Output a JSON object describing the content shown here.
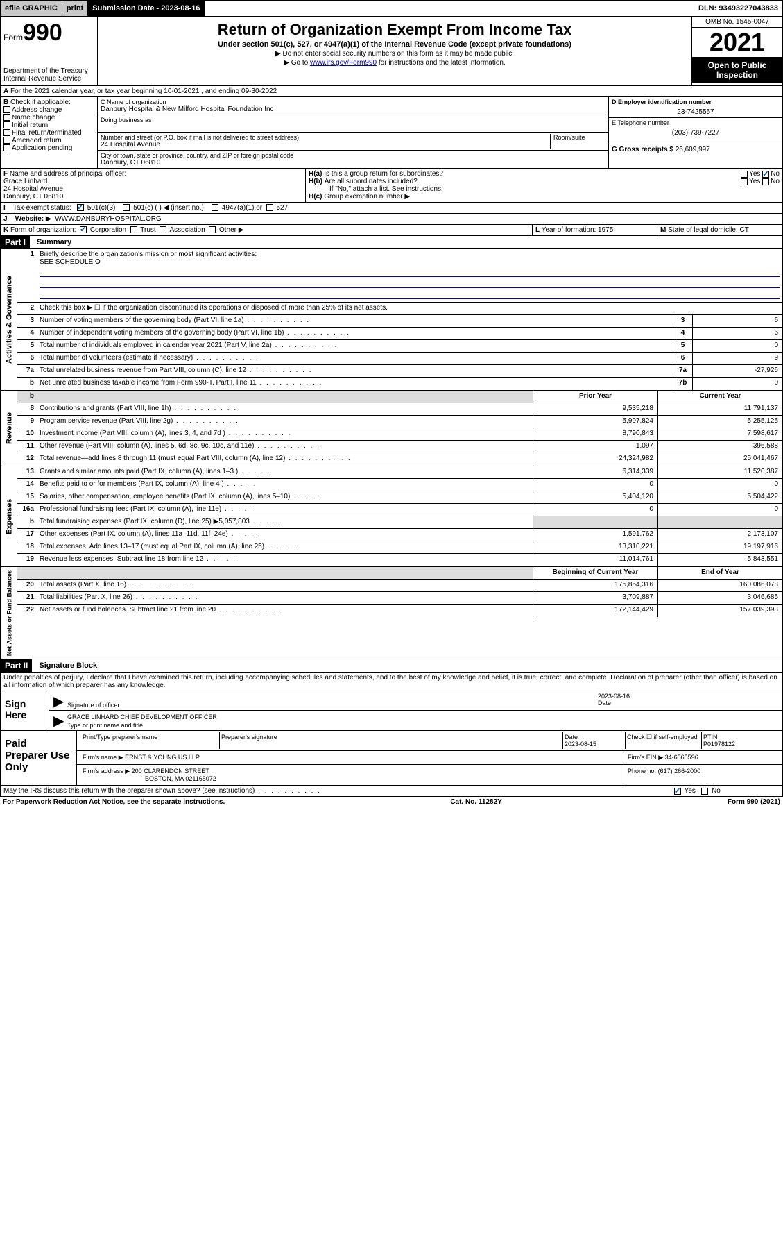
{
  "topbar": {
    "efile": "efile GRAPHIC",
    "print": "print",
    "submission_label": "Submission Date - 2023-08-16",
    "dln": "DLN: 93493227043833"
  },
  "header": {
    "form_prefix": "Form",
    "form_number": "990",
    "dept": "Department of the Treasury",
    "irs": "Internal Revenue Service",
    "title": "Return of Organization Exempt From Income Tax",
    "subtitle": "Under section 501(c), 527, or 4947(a)(1) of the Internal Revenue Code (except private foundations)",
    "note1": "▶ Do not enter social security numbers on this form as it may be made public.",
    "note2_prefix": "▶ Go to ",
    "note2_link": "www.irs.gov/Form990",
    "note2_suffix": " for instructions and the latest information.",
    "omb": "OMB No. 1545-0047",
    "year": "2021",
    "open": "Open to Public Inspection"
  },
  "section_a": {
    "text": "For the 2021 calendar year, or tax year beginning 10-01-2021   , and ending 09-30-2022"
  },
  "box_b": {
    "label": "B",
    "check_label": "Check if applicable:",
    "items": [
      "Address change",
      "Name change",
      "Initial return",
      "Final return/terminated",
      "Amended return",
      "Application pending"
    ]
  },
  "box_c": {
    "name_label": "C Name of organization",
    "name": "Danbury Hospital & New Milford Hospital Foundation Inc",
    "dba_label": "Doing business as",
    "addr_label": "Number and street (or P.O. box if mail is not delivered to street address)",
    "room_label": "Room/suite",
    "addr": "24 Hospital Avenue",
    "city_label": "City or town, state or province, country, and ZIP or foreign postal code",
    "city": "Danbury, CT  06810"
  },
  "box_d": {
    "label": "D Employer identification number",
    "ein": "23-7425557",
    "e_label": "E Telephone number",
    "phone": "(203) 739-7227",
    "g_label": "G Gross receipts $",
    "gross": "26,609,997"
  },
  "box_f": {
    "label": "F",
    "text": "Name and address of principal officer:",
    "name": "Grace Linhard",
    "addr": "24 Hospital Avenue",
    "city": "Danbury, CT  06810"
  },
  "box_h": {
    "ha": "H(a)",
    "ha_text": "Is this a group return for subordinates?",
    "hb": "H(b)",
    "hb_text": "Are all subordinates included?",
    "hb_note": "If \"No,\" attach a list. See instructions.",
    "hc": "H(c)",
    "hc_text": "Group exemption number ▶",
    "yes": "Yes",
    "no": "No"
  },
  "tax_status": {
    "i_label": "I",
    "label": "Tax-exempt status:",
    "opt1": "501(c)(3)",
    "opt2": "501(c) (  ) ◀ (insert no.)",
    "opt3": "4947(a)(1) or",
    "opt4": "527"
  },
  "website": {
    "j_label": "J",
    "label": "Website: ▶",
    "url": "WWW.DANBURYHOSPITAL.ORG"
  },
  "box_k": {
    "label": "K",
    "text": "Form of organization:",
    "opts": [
      "Corporation",
      "Trust",
      "Association",
      "Other ▶"
    ]
  },
  "box_l": {
    "label": "L",
    "text": "Year of formation: 1975"
  },
  "box_m": {
    "label": "M",
    "text": "State of legal domicile: CT"
  },
  "part1": {
    "header": "Part I",
    "title": "Summary",
    "q1_num": "1",
    "q1": "Briefly describe the organization's mission or most significant activities:",
    "q1_ans": "SEE SCHEDULE O",
    "q2_num": "2",
    "q2": "Check this box ▶ ☐  if the organization discontinued its operations or disposed of more than 25% of its net assets."
  },
  "governance_label": "Activities & Governance",
  "revenue_label": "Revenue",
  "expenses_label": "Expenses",
  "netassets_label": "Net Assets or Fund Balances",
  "lines_gov": [
    {
      "n": "3",
      "d": "Number of voting members of the governing body (Part VI, line 1a)",
      "box": "3",
      "v": "6"
    },
    {
      "n": "4",
      "d": "Number of independent voting members of the governing body (Part VI, line 1b)",
      "box": "4",
      "v": "6"
    },
    {
      "n": "5",
      "d": "Total number of individuals employed in calendar year 2021 (Part V, line 2a)",
      "box": "5",
      "v": "0"
    },
    {
      "n": "6",
      "d": "Total number of volunteers (estimate if necessary)",
      "box": "6",
      "v": "9"
    },
    {
      "n": "7a",
      "d": "Total unrelated business revenue from Part VIII, column (C), line 12",
      "box": "7a",
      "v": "-27,926"
    },
    {
      "n": "b",
      "d": "Net unrelated business taxable income from Form 990-T, Part I, line 11",
      "box": "7b",
      "v": "0"
    }
  ],
  "col_headers": {
    "prior": "Prior Year",
    "current": "Current Year",
    "boy": "Beginning of Current Year",
    "eoy": "End of Year"
  },
  "lines_rev": [
    {
      "n": "8",
      "d": "Contributions and grants (Part VIII, line 1h)",
      "p": "9,535,218",
      "c": "11,791,137"
    },
    {
      "n": "9",
      "d": "Program service revenue (Part VIII, line 2g)",
      "p": "5,997,824",
      "c": "5,255,125"
    },
    {
      "n": "10",
      "d": "Investment income (Part VIII, column (A), lines 3, 4, and 7d )",
      "p": "8,790,843",
      "c": "7,598,617"
    },
    {
      "n": "11",
      "d": "Other revenue (Part VIII, column (A), lines 5, 6d, 8c, 9c, 10c, and 11e)",
      "p": "1,097",
      "c": "396,588"
    },
    {
      "n": "12",
      "d": "Total revenue—add lines 8 through 11 (must equal Part VIII, column (A), line 12)",
      "p": "24,324,982",
      "c": "25,041,467"
    }
  ],
  "lines_exp": [
    {
      "n": "13",
      "d": "Grants and similar amounts paid (Part IX, column (A), lines 1–3 )",
      "p": "6,314,339",
      "c": "11,520,387"
    },
    {
      "n": "14",
      "d": "Benefits paid to or for members (Part IX, column (A), line 4 )",
      "p": "0",
      "c": "0"
    },
    {
      "n": "15",
      "d": "Salaries, other compensation, employee benefits (Part IX, column (A), lines 5–10)",
      "p": "5,404,120",
      "c": "5,504,422"
    },
    {
      "n": "16a",
      "d": "Professional fundraising fees (Part IX, column (A), line 11e)",
      "p": "0",
      "c": "0"
    },
    {
      "n": "b",
      "d": "Total fundraising expenses (Part IX, column (D), line 25) ▶5,057,803",
      "p": "",
      "c": "",
      "shade": true
    },
    {
      "n": "17",
      "d": "Other expenses (Part IX, column (A), lines 11a–11d, 11f–24e)",
      "p": "1,591,762",
      "c": "2,173,107"
    },
    {
      "n": "18",
      "d": "Total expenses. Add lines 13–17 (must equal Part IX, column (A), line 25)",
      "p": "13,310,221",
      "c": "19,197,916"
    },
    {
      "n": "19",
      "d": "Revenue less expenses. Subtract line 18 from line 12",
      "p": "11,014,761",
      "c": "5,843,551"
    }
  ],
  "lines_net": [
    {
      "n": "20",
      "d": "Total assets (Part X, line 16)",
      "p": "175,854,316",
      "c": "160,086,078"
    },
    {
      "n": "21",
      "d": "Total liabilities (Part X, line 26)",
      "p": "3,709,887",
      "c": "3,046,685"
    },
    {
      "n": "22",
      "d": "Net assets or fund balances. Subtract line 21 from line 20",
      "p": "172,144,429",
      "c": "157,039,393"
    }
  ],
  "part2": {
    "header": "Part II",
    "title": "Signature Block",
    "declaration": "Under penalties of perjury, I declare that I have examined this return, including accompanying schedules and statements, and to the best of my knowledge and belief, it is true, correct, and complete. Declaration of preparer (other than officer) is based on all information of which preparer has any knowledge."
  },
  "sign": {
    "label": "Sign Here",
    "sig_officer": "Signature of officer",
    "date_label": "Date",
    "date": "2023-08-16",
    "name": "GRACE LINHARD  CHIEF DEVELOPMENT OFFICER",
    "name_label": "Type or print name and title"
  },
  "preparer": {
    "label": "Paid Preparer Use Only",
    "name_label": "Print/Type preparer's name",
    "sig_label": "Preparer's signature",
    "date_label": "Date",
    "date": "2023-08-15",
    "check_label": "Check ☐ if self-employed",
    "ptin_label": "PTIN",
    "ptin": "P01978122",
    "firm_name_label": "Firm's name    ▶",
    "firm_name": "ERNST & YOUNG US LLP",
    "firm_ein_label": "Firm's EIN ▶",
    "firm_ein": "34-6565596",
    "firm_addr_label": "Firm's address ▶",
    "firm_addr": "200 CLARENDON STREET",
    "firm_city": "BOSTON, MA  021165072",
    "phone_label": "Phone no.",
    "phone": "(617) 266-2000"
  },
  "discuss": {
    "text": "May the IRS discuss this return with the preparer shown above? (see instructions)",
    "yes": "Yes",
    "no": "No"
  },
  "footer": {
    "left": "For Paperwork Reduction Act Notice, see the separate instructions.",
    "center": "Cat. No. 11282Y",
    "right": "Form 990 (2021)"
  }
}
